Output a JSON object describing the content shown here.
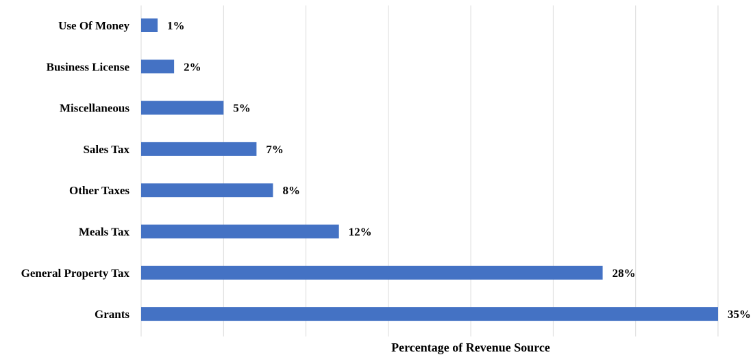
{
  "chart_data": {
    "type": "bar",
    "orientation": "horizontal",
    "categories": [
      "Use Of Money",
      "Business License",
      "Miscellaneous",
      "Sales Tax",
      "Other Taxes",
      "Meals Tax",
      "General Property Tax",
      "Grants"
    ],
    "values": [
      1,
      2,
      5,
      7,
      8,
      12,
      28,
      35
    ],
    "value_labels": [
      "1%",
      "2%",
      "5%",
      "7%",
      "8%",
      "12%",
      "28%",
      "35%"
    ],
    "title": "",
    "xlabel": "Percentage of Revenue Source",
    "ylabel": "",
    "xlim": [
      0,
      35
    ],
    "grid": true,
    "legend": "none",
    "bar_color": "#4472c4",
    "grid_color": "#d9d9d9"
  }
}
